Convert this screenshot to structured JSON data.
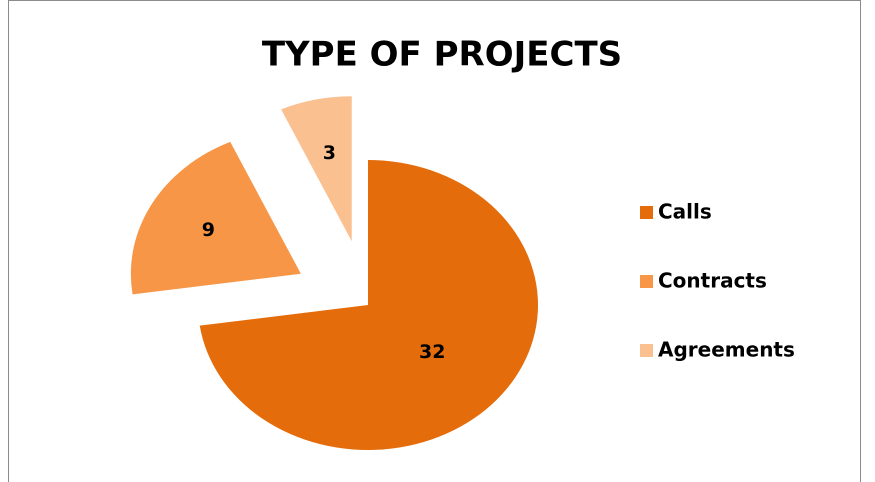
{
  "chart_data": {
    "type": "pie",
    "title": "TYPE OF PROJECTS",
    "categories": [
      "Calls",
      "Contracts",
      "Agreements"
    ],
    "values": [
      32,
      9,
      3
    ],
    "colors": [
      "#e46c0a",
      "#f79646",
      "#fac090"
    ],
    "legend": "right"
  }
}
